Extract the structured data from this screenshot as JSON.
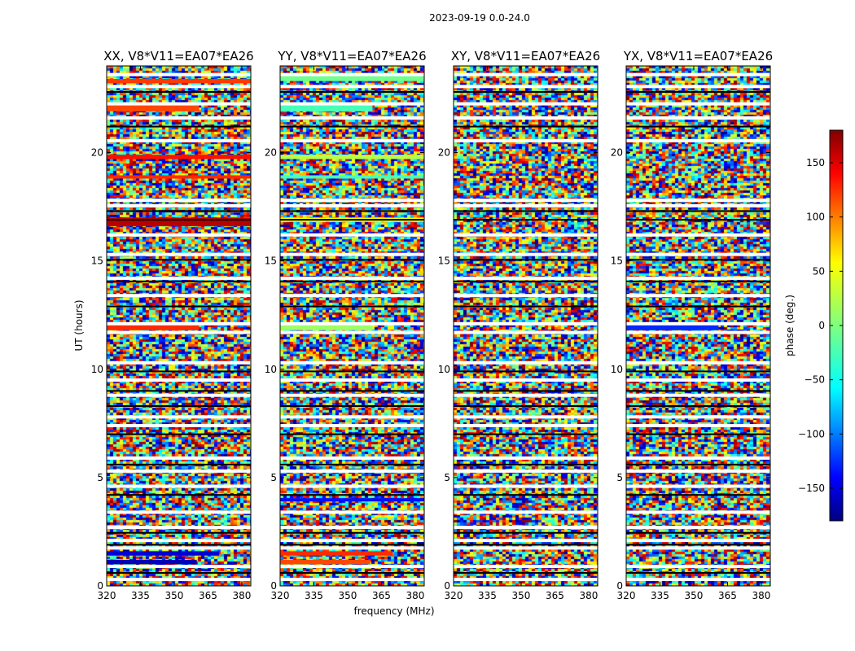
{
  "figure": {
    "suptitle": "2023-09-19 0.0-24.0",
    "xlabel": "frequency (MHz)",
    "ylabel": "UT (hours)",
    "colorbar_label": "phase (deg.)"
  },
  "chart_data": {
    "type": "heatmap",
    "x_range": [
      320,
      384
    ],
    "x_ticks": [
      320,
      335,
      350,
      365,
      380
    ],
    "y_range": [
      0,
      24
    ],
    "y_ticks": [
      0,
      5,
      10,
      15,
      20
    ],
    "color_range": [
      -180,
      180
    ],
    "colorbar_ticks": [
      -150,
      -100,
      -50,
      0,
      50,
      100,
      150
    ],
    "colormap": "jet",
    "panels": [
      {
        "title": "XX, V8*V11=EA07*EA26",
        "features": [
          {
            "ut_start": 23.2,
            "ut_end": 23.4,
            "phase": 115,
            "freq_end": 384
          },
          {
            "ut_start": 21.9,
            "ut_end": 22.2,
            "phase": 110,
            "freq_end": 361
          },
          {
            "ut_start": 19.7,
            "ut_end": 19.9,
            "phase": 130,
            "freq_end": 384
          },
          {
            "ut_start": 18.8,
            "ut_end": 18.95,
            "phase": 120,
            "freq_end": 384
          },
          {
            "ut_start": 16.6,
            "ut_end": 17.0,
            "phase": 160,
            "freq_end": 384
          },
          {
            "ut_start": 11.8,
            "ut_end": 12.05,
            "phase": 120,
            "freq_end": 361
          },
          {
            "ut_start": 1.4,
            "ut_end": 1.6,
            "phase": -150,
            "freq_end": 370
          },
          {
            "ut_start": 1.0,
            "ut_end": 1.2,
            "phase": -160,
            "freq_end": 360
          }
        ]
      },
      {
        "title": "YY, V8*V11=EA07*EA26",
        "features": [
          {
            "ut_start": 23.3,
            "ut_end": 23.55,
            "phase": -5,
            "freq_end": 384
          },
          {
            "ut_start": 21.9,
            "ut_end": 22.2,
            "phase": -20,
            "freq_end": 361
          },
          {
            "ut_start": 19.7,
            "ut_end": 19.9,
            "phase": 20,
            "freq_end": 384
          },
          {
            "ut_start": 18.8,
            "ut_end": 18.95,
            "phase": -20,
            "freq_end": 384
          },
          {
            "ut_start": 16.8,
            "ut_end": 17.0,
            "phase": 40,
            "freq_end": 384
          },
          {
            "ut_start": 11.8,
            "ut_end": 12.05,
            "phase": 10,
            "freq_end": 361
          },
          {
            "ut_start": 3.9,
            "ut_end": 4.05,
            "phase": -130,
            "freq_end": 384
          },
          {
            "ut_start": 1.4,
            "ut_end": 1.6,
            "phase": 120,
            "freq_end": 370
          },
          {
            "ut_start": 1.0,
            "ut_end": 1.2,
            "phase": 110,
            "freq_end": 360
          }
        ]
      },
      {
        "title": "XY, V8*V11=EA07*EA26",
        "features": []
      },
      {
        "title": "YX, V8*V11=EA07*EA26",
        "features": [
          {
            "ut_start": 11.8,
            "ut_end": 12.05,
            "phase": -120,
            "freq_end": 361
          }
        ]
      }
    ],
    "flagged_ut": [
      23.6,
      23.05,
      22.25,
      21.6,
      20.55,
      17.8,
      17.55,
      16.2,
      15.3,
      14.2,
      13.4,
      12.1,
      11.7,
      10.3,
      9.5,
      8.8,
      7.8,
      7.4,
      5.9,
      5.3,
      4.6,
      3.4,
      2.7,
      2.1,
      1.75,
      0.9,
      0.3
    ],
    "dark_ut": [
      22.8,
      21.2,
      17.3,
      16.9,
      15.05,
      14.05,
      12.9,
      9.9,
      9.0,
      8.3,
      7.0,
      5.6,
      4.2,
      2.45,
      1.9,
      0.6
    ]
  }
}
